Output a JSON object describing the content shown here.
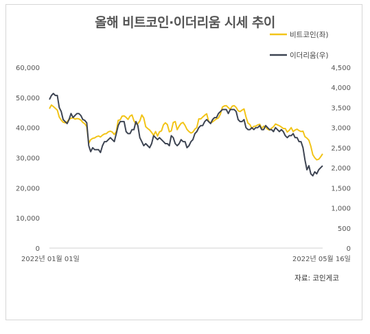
{
  "chart_data": {
    "type": "line",
    "title": "올해 비트코인·이더리움 시세 추이",
    "x_start_label": "2022년 01월 01일",
    "x_end_label": "2022년 05월 16일",
    "left_axis": {
      "ticks": [
        "60,000",
        "50,000",
        "40,000",
        "30,000",
        "20,000",
        "10,000",
        "0"
      ],
      "ylim": [
        0,
        60000
      ]
    },
    "right_axis": {
      "ticks": [
        "4,500",
        "4,000",
        "3,500",
        "3,000",
        "2,500",
        "2,000",
        "1,500",
        "1,000",
        "500",
        "0"
      ],
      "ylim": [
        0,
        4500
      ]
    },
    "grid": false,
    "legend_position": "top-right",
    "series": [
      {
        "name": "비트코인(좌)",
        "axis": "left",
        "color": "#f2c418",
        "values": [
          46300,
          47500,
          47000,
          46400,
          45800,
          43500,
          42500,
          41800,
          41600,
          41900,
          42800,
          43100,
          43300,
          42800,
          43000,
          42900,
          42500,
          41700,
          41300,
          40300,
          34800,
          36000,
          36400,
          36600,
          37000,
          37200,
          36900,
          37500,
          37900,
          38000,
          38600,
          38800,
          38500,
          37700,
          38700,
          42400,
          42600,
          43800,
          43900,
          43400,
          42700,
          43800,
          44200,
          42300,
          41200,
          41300,
          42200,
          44200,
          43200,
          40300,
          39700,
          39200,
          38400,
          37400,
          38700,
          37200,
          38600,
          38900,
          40900,
          41600,
          41000,
          38600,
          38900,
          41700,
          42000,
          39300,
          40500,
          41400,
          41700,
          40700,
          39400,
          38700,
          38200,
          38500,
          39500,
          40000,
          42900,
          42900,
          43500,
          44100,
          44600,
          42100,
          41600,
          41900,
          42400,
          42900,
          43200,
          44500,
          46800,
          47200,
          47300,
          46600,
          46100,
          47100,
          47300,
          46700,
          45600,
          45300,
          45800,
          46200,
          43600,
          41500,
          41000,
          39700,
          40400,
          40500,
          40900,
          41100,
          39700,
          40500,
          40100,
          39500,
          39200,
          39800,
          40300,
          41200,
          40900,
          40600,
          40200,
          39700,
          39700,
          38500,
          39100,
          40000,
          38700,
          39200,
          39500,
          39000,
          38700,
          38800,
          37000,
          36500,
          35800,
          33800,
          31000,
          30000,
          29300,
          29500,
          30300,
          31300
        ]
      },
      {
        "name": "이더리움(우)",
        "axis": "right",
        "color": "#3d4452",
        "values": [
          3700,
          3800,
          3850,
          3800,
          3800,
          3500,
          3400,
          3200,
          3150,
          3100,
          3200,
          3350,
          3250,
          3300,
          3350,
          3350,
          3300,
          3200,
          3180,
          3120,
          2550,
          2400,
          2500,
          2450,
          2450,
          2450,
          2380,
          2550,
          2650,
          2650,
          2700,
          2750,
          2700,
          2650,
          2850,
          3050,
          3150,
          3150,
          3150,
          2900,
          2850,
          2850,
          2950,
          2950,
          3150,
          3050,
          2750,
          2650,
          2550,
          2600,
          2550,
          2500,
          2600,
          2800,
          2750,
          2700,
          2750,
          2700,
          2650,
          2600,
          2600,
          2550,
          2800,
          2750,
          2600,
          2550,
          2600,
          2700,
          2650,
          2650,
          2500,
          2550,
          2650,
          2700,
          2850,
          2900,
          3000,
          3050,
          3050,
          3150,
          3200,
          3150,
          3100,
          3200,
          3250,
          3250,
          3350,
          3400,
          3450,
          3450,
          3450,
          3350,
          3450,
          3450,
          3450,
          3400,
          3200,
          3150,
          3150,
          3200,
          3000,
          2950,
          2950,
          3000,
          2950,
          3000,
          3000,
          3050,
          2950,
          2950,
          3050,
          3000,
          2950,
          2950,
          2900,
          3000,
          2950,
          2900,
          2950,
          2900,
          2800,
          2750,
          2800,
          2800,
          2850,
          2750,
          2750,
          2650,
          2650,
          2500,
          2200,
          1950,
          2050,
          1850,
          1800,
          1900,
          1850,
          1950,
          2000,
          2050
        ]
      }
    ]
  },
  "source": "자료: 코인게코"
}
